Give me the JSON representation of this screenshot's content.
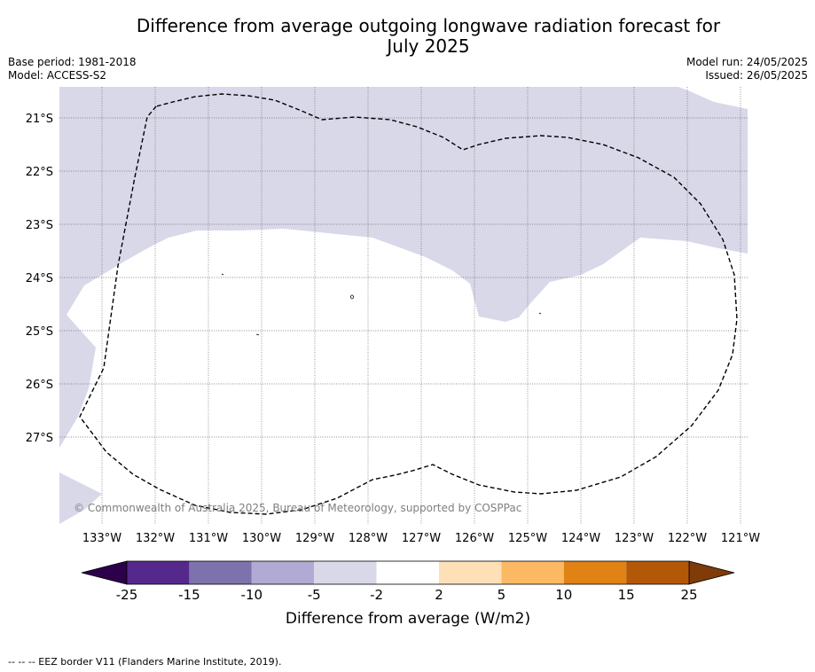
{
  "title": {
    "line1": "Difference from average outgoing longwave radiation forecast for",
    "line2": "July 2025"
  },
  "info": {
    "base_period": "Base period: 1981-2018",
    "model": "Model: ACCESS-S2",
    "model_run": "Model run: 24/05/2025",
    "issued": "Issued: 26/05/2025"
  },
  "map": {
    "lat_labels": [
      "21°S",
      "22°S",
      "23°S",
      "24°S",
      "25°S",
      "26°S",
      "27°S"
    ],
    "lon_labels": [
      "133°W",
      "132°W",
      "131°W",
      "130°W",
      "129°W",
      "128°W",
      "127°W",
      "126°W",
      "125°W",
      "124°W",
      "123°W",
      "122°W",
      "121°W"
    ],
    "credit": "© Commonwealth of Australia 2025, Bureau of Meteorology, supported by COSPPac",
    "anomaly_fill_color": "#d8d8e9",
    "eez_line_style": "dashed"
  },
  "colorbar": {
    "tick_labels": [
      "-25",
      "-15",
      "-10",
      "-5",
      "-2",
      "2",
      "5",
      "10",
      "15",
      "25"
    ],
    "colors": [
      "#55288c",
      "#7e72ad",
      "#b0aad4",
      "#d8d8e9",
      "#ffffff",
      "#fee0b6",
      "#fdb863",
      "#e08214",
      "#b35806"
    ],
    "under_color": "#2d004b",
    "over_color": "#7f3b08",
    "label": "Difference from average (W/m2)"
  },
  "footnote": "--  --  -- EEZ border V11 (Flanders Marine Institute, 2019)."
}
